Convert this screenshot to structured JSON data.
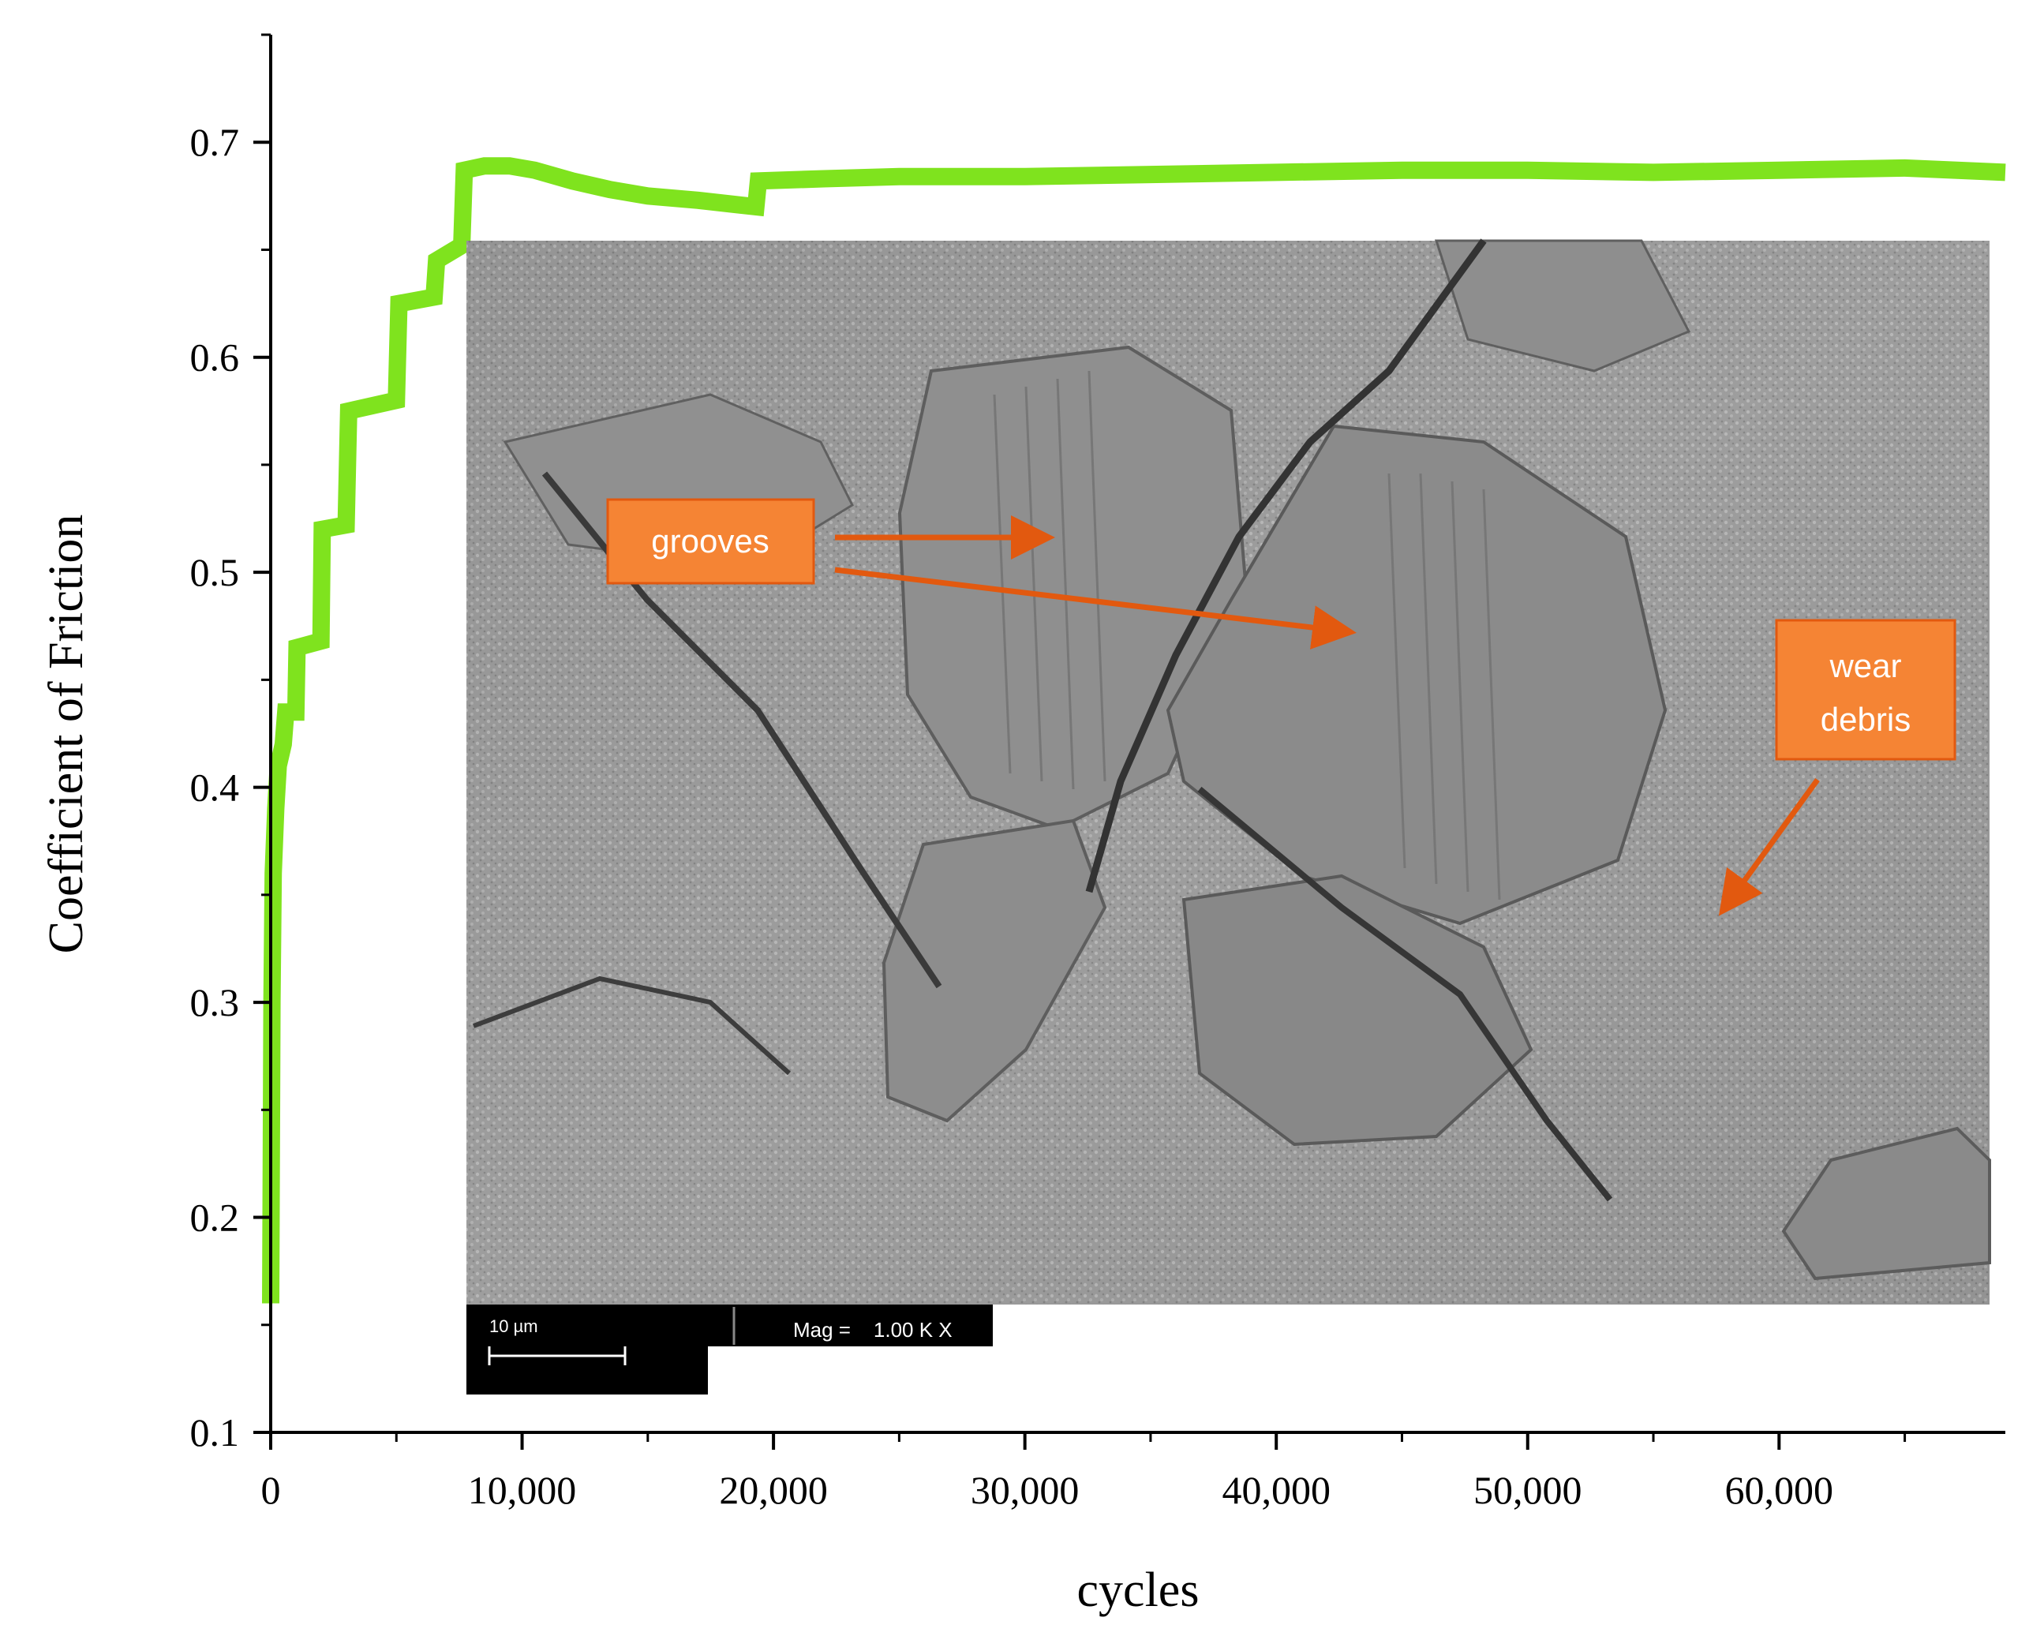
{
  "chart_data": {
    "type": "line",
    "title": "",
    "xlabel": "cycles",
    "ylabel": "Coefficient of Friction",
    "xlim": [
      0,
      69000
    ],
    "ylim": [
      0.1,
      0.75
    ],
    "x_ticks": [
      0,
      10000,
      20000,
      30000,
      40000,
      50000,
      60000
    ],
    "x_tick_labels": [
      "0",
      "10,000",
      "20,000",
      "30,000",
      "40,000",
      "50,000",
      "60,000"
    ],
    "y_ticks": [
      0.1,
      0.2,
      0.3,
      0.4,
      0.5,
      0.6,
      0.7
    ],
    "y_tick_labels": [
      "0.1",
      "0.2",
      "0.3",
      "0.4",
      "0.5",
      "0.6",
      "0.7"
    ],
    "grid": false,
    "series_color": "#7fe31e",
    "series": [
      {
        "x": [
          0,
          50,
          100,
          200,
          300,
          500,
          600,
          800,
          1000,
          1050,
          2000,
          2050,
          3000,
          3100,
          5000,
          5100,
          6500,
          6600,
          7600,
          7700,
          8500,
          9500,
          10500,
          12000,
          13500,
          15000,
          17000,
          18500,
          19300,
          19400,
          22000,
          25000,
          30000,
          35000,
          40000,
          45000,
          50000,
          55000,
          60000,
          65000,
          69000
        ],
        "y": [
          0.16,
          0.3,
          0.36,
          0.39,
          0.41,
          0.42,
          0.435,
          0.435,
          0.435,
          0.465,
          0.468,
          0.52,
          0.522,
          0.575,
          0.58,
          0.625,
          0.628,
          0.645,
          0.652,
          0.687,
          0.689,
          0.689,
          0.687,
          0.682,
          0.678,
          0.675,
          0.673,
          0.671,
          0.67,
          0.682,
          0.683,
          0.684,
          0.684,
          0.685,
          0.686,
          0.687,
          0.687,
          0.686,
          0.687,
          0.688,
          0.686
        ]
      }
    ]
  },
  "inset": {
    "grooves_label": "grooves",
    "wear_debris_line1": "wear",
    "wear_debris_line2": "debris",
    "scale_bar_label": "10 µm",
    "mag_label": "Mag =    1.00 K X",
    "callout_color": "#f58434",
    "arrow_color": "#e2590f"
  }
}
